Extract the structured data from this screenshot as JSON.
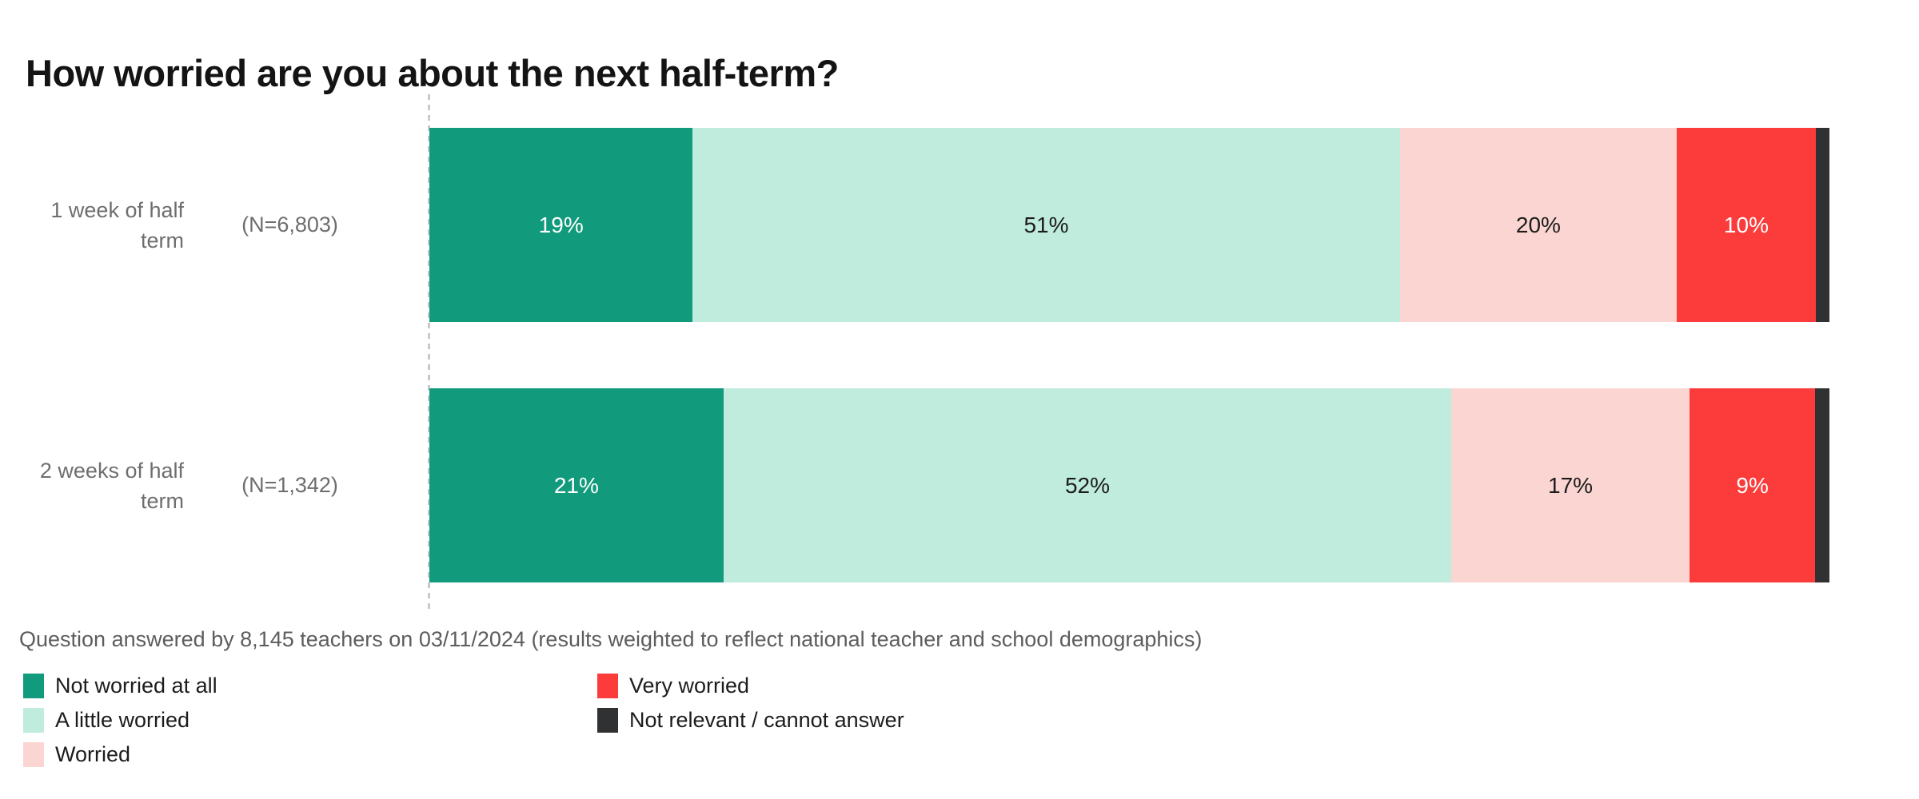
{
  "page": {
    "title": "How worried are you about the next half-term?",
    "footnote": "Question answered by 8,145 teachers on 03/11/2024 (results weighted to reflect national teacher and school demographics)"
  },
  "colors": {
    "title_text": "#141414",
    "row_label_gray": "#6E6E6E",
    "footnote_gray": "#5D5D5D",
    "legend_text": "#1C1C1C",
    "baseline_dash": "#C9C9C9",
    "background": "#FFFFFF"
  },
  "chart_data": {
    "type": "bar",
    "orientation": "horizontal",
    "stacked": true,
    "grid": false,
    "xlim": [
      0,
      100
    ],
    "legend_position": "bottom-left",
    "title": "How worried are you about the next half-term?",
    "categories": [
      "1 week of half term",
      "2 weeks of half term"
    ],
    "category_display_lines": [
      [
        "1 week of half",
        "term"
      ],
      [
        "2 weeks of half",
        "term"
      ]
    ],
    "sample_sizes": [
      "(N=6,803)",
      "(N=1,342)"
    ],
    "series": [
      {
        "name": "Not worried at all",
        "color": "#119A7B",
        "text_color": "#FFFFFF",
        "values": [
          19,
          21
        ],
        "data_labels": [
          "19%",
          "21%"
        ]
      },
      {
        "name": "A little worried",
        "color": "#BFECDC",
        "text_color": "#1C1C1C",
        "values": [
          51,
          52
        ],
        "data_labels": [
          "51%",
          "52%"
        ]
      },
      {
        "name": "Worried",
        "color": "#FBD5D2",
        "text_color": "#1C1C1C",
        "values": [
          20,
          17
        ],
        "data_labels": [
          "20%",
          "17%"
        ]
      },
      {
        "name": "Very worried",
        "color": "#FC3B3B",
        "text_color": "#FFFFFF",
        "values": [
          10,
          9
        ],
        "data_labels": [
          "10%",
          "9%"
        ]
      },
      {
        "name": "Not relevant / cannot answer",
        "color": "#2F3133",
        "text_color": "#FFFFFF",
        "values": [
          1,
          1
        ],
        "data_labels": [
          "",
          ""
        ]
      }
    ],
    "legend_columns": [
      [
        0,
        1,
        2
      ],
      [
        3,
        4
      ]
    ]
  }
}
